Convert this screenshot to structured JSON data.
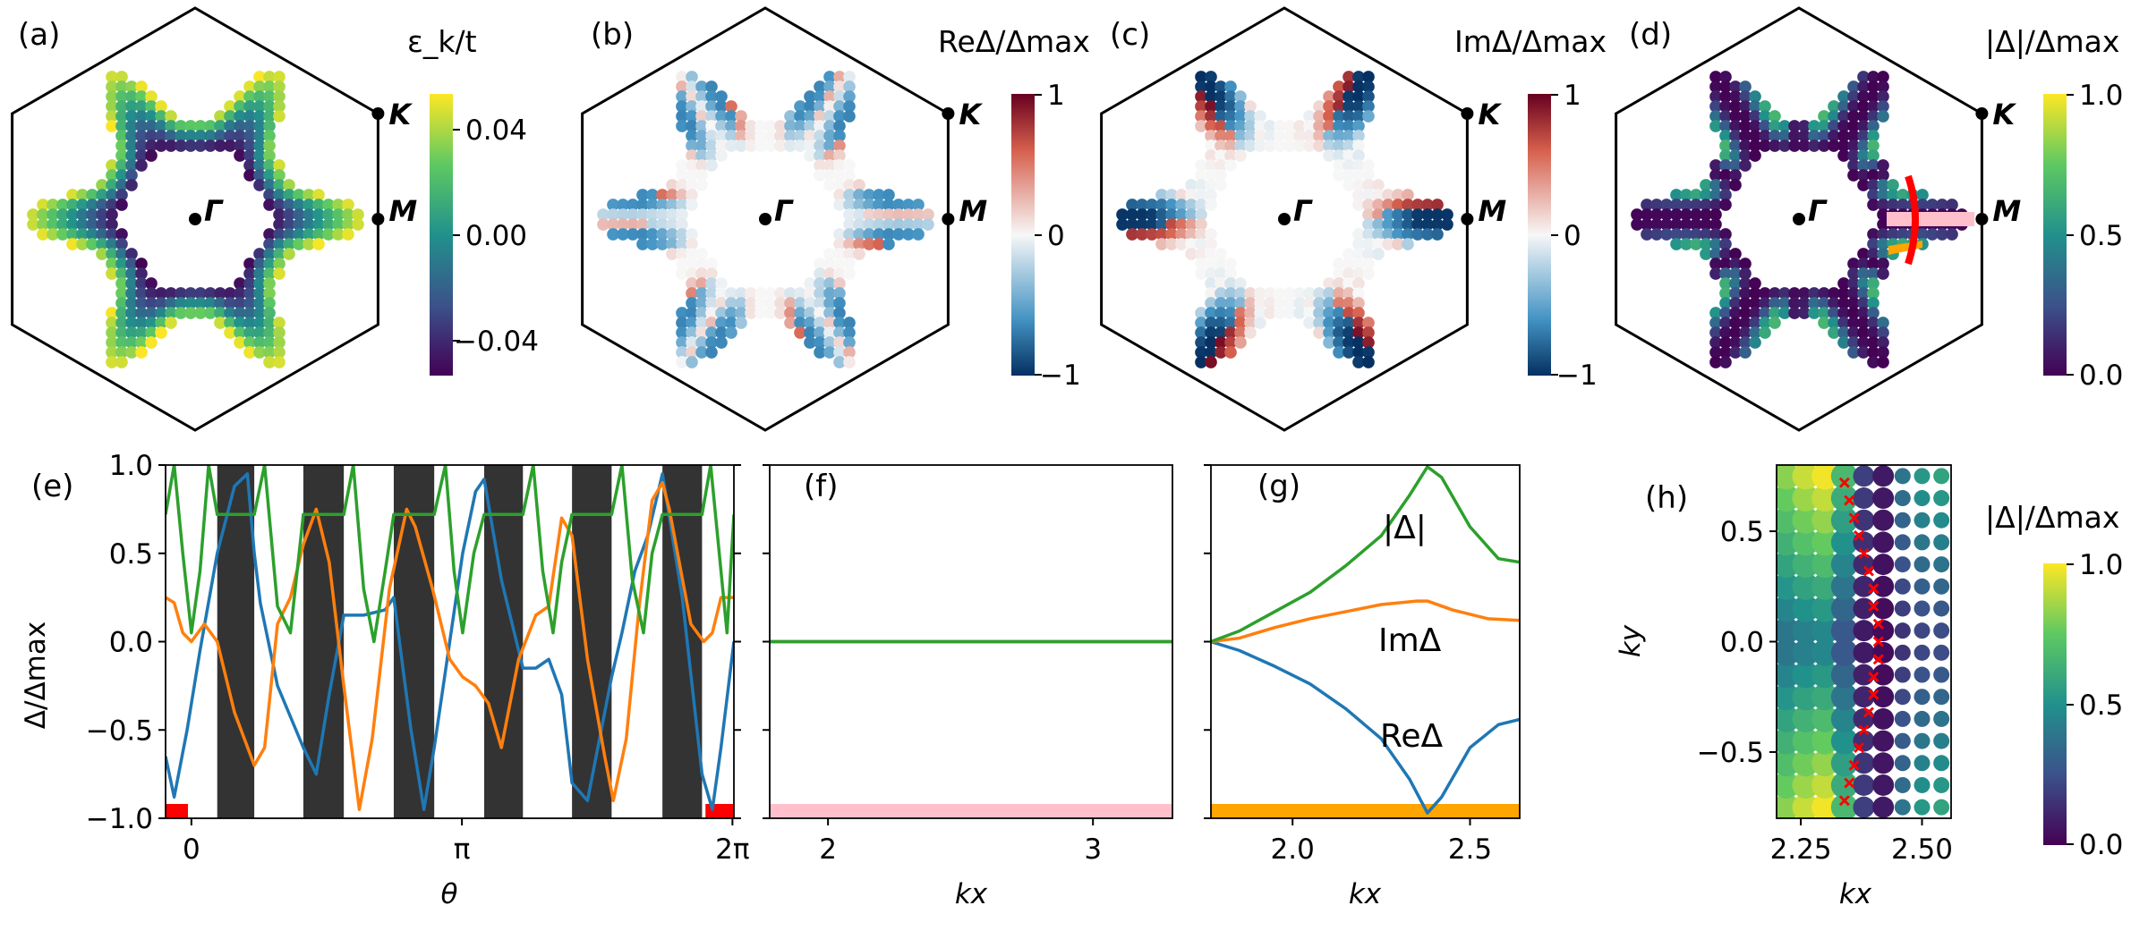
{
  "colors": {
    "re": "#1f77b4",
    "im": "#ff7f0e",
    "abs": "#2ca02c",
    "stripe": "#333333",
    "red_mark": "#ff0000",
    "pink": "#ffc0cb",
    "orange_band": "#ffa500",
    "hex_edge": "#000000"
  },
  "chart_data": [
    {
      "id": "a",
      "panel_label": "(a)",
      "type": "scatter",
      "title": "ε_k/t",
      "colormap": "viridis",
      "colorbar_ticks": [
        "0.04",
        "0.00",
        "−0.04"
      ],
      "colorbar_range": [
        -0.055,
        0.055
      ],
      "points": [
        "Γ",
        "K",
        "M"
      ]
    },
    {
      "id": "b",
      "panel_label": "(b)",
      "type": "scatter",
      "title": "ReΔ/Δmax",
      "colormap": "RdBu_r",
      "colorbar_ticks": [
        "1",
        "0",
        "−1"
      ],
      "colorbar_range": [
        -1,
        1
      ],
      "points": [
        "Γ",
        "K",
        "M"
      ]
    },
    {
      "id": "c",
      "panel_label": "(c)",
      "type": "scatter",
      "title": "ImΔ/Δmax",
      "colormap": "RdBu_r",
      "colorbar_ticks": [
        "1",
        "0",
        "−1"
      ],
      "colorbar_range": [
        -1,
        1
      ],
      "points": [
        "Γ",
        "K",
        "M"
      ]
    },
    {
      "id": "d",
      "panel_label": "(d)",
      "type": "scatter",
      "title": "|Δ|/Δmax",
      "colormap": "viridis",
      "colorbar_ticks": [
        "1.0",
        "0.5",
        "0.0"
      ],
      "colorbar_range": [
        0,
        1
      ],
      "points": [
        "Γ",
        "K",
        "M"
      ]
    },
    {
      "id": "e",
      "panel_label": "(e)",
      "type": "line",
      "xlabel": "θ",
      "ylabel": "Δ/Δmax",
      "xlim": [
        -0.3,
        6.3
      ],
      "ylim": [
        -1,
        1
      ],
      "xticks": [
        {
          "v": 0,
          "label": "0"
        },
        {
          "v": 3.14159,
          "label": "π"
        },
        {
          "v": 6.28318,
          "label": "2π"
        }
      ],
      "yticks": [
        {
          "v": 1,
          "label": "1.0"
        },
        {
          "v": 0.5,
          "label": "0.5"
        },
        {
          "v": 0,
          "label": "0.0"
        },
        {
          "v": -0.5,
          "label": "−0.5"
        },
        {
          "v": -1,
          "label": "−1.0"
        }
      ],
      "stripes": [
        [
          0.3,
          0.73
        ],
        [
          1.3,
          1.77
        ],
        [
          2.35,
          2.82
        ],
        [
          3.4,
          3.85
        ],
        [
          4.42,
          4.88
        ],
        [
          5.47,
          5.93
        ]
      ],
      "red_marks": [
        [
          -0.3,
          -0.04
        ],
        [
          5.97,
          6.3
        ]
      ],
      "series": [
        {
          "name": "ReΔ",
          "color": "re",
          "x": [
            -0.3,
            -0.2,
            -0.05,
            0.1,
            0.3,
            0.5,
            0.65,
            0.73,
            0.8,
            1.0,
            1.3,
            1.45,
            1.6,
            1.77,
            2.0,
            2.25,
            2.35,
            2.55,
            2.7,
            2.82,
            3.0,
            3.15,
            3.3,
            3.4,
            3.6,
            3.85,
            4.0,
            4.15,
            4.3,
            4.42,
            4.6,
            4.88,
            5.0,
            5.15,
            5.3,
            5.47,
            5.7,
            5.93,
            6.05,
            6.15,
            6.3
          ],
          "y": [
            -0.65,
            -0.88,
            -0.5,
            -0.05,
            0.5,
            0.88,
            0.95,
            0.5,
            0.22,
            -0.25,
            -0.6,
            -0.75,
            -0.3,
            0.15,
            0.15,
            0.18,
            0.25,
            -0.5,
            -0.95,
            -0.6,
            0.0,
            0.5,
            0.85,
            0.92,
            0.35,
            -0.15,
            -0.15,
            -0.1,
            -0.3,
            -0.8,
            -0.9,
            -0.2,
            0.05,
            0.4,
            0.6,
            0.95,
            0.25,
            -0.75,
            -0.95,
            -0.6,
            0.0
          ]
        },
        {
          "name": "ImΔ",
          "color": "im",
          "x": [
            -0.3,
            -0.2,
            -0.1,
            0.0,
            0.15,
            0.3,
            0.5,
            0.73,
            0.85,
            1.0,
            1.15,
            1.3,
            1.45,
            1.6,
            1.77,
            1.95,
            2.1,
            2.3,
            2.5,
            2.6,
            2.8,
            3.0,
            3.15,
            3.3,
            3.45,
            3.6,
            3.8,
            4.0,
            4.15,
            4.3,
            4.42,
            4.6,
            4.8,
            4.9,
            5.05,
            5.2,
            5.35,
            5.47,
            5.55,
            5.8,
            5.95,
            6.05,
            6.15,
            6.3
          ],
          "y": [
            0.25,
            0.22,
            0.05,
            0.0,
            0.1,
            0.0,
            -0.4,
            -0.7,
            -0.6,
            0.1,
            0.25,
            0.55,
            0.75,
            0.45,
            -0.25,
            -0.95,
            -0.55,
            0.3,
            0.75,
            0.65,
            0.3,
            -0.1,
            -0.2,
            -0.25,
            -0.35,
            -0.6,
            -0.1,
            0.15,
            0.2,
            0.7,
            0.6,
            -0.1,
            -0.65,
            -0.9,
            -0.55,
            0.2,
            0.8,
            0.9,
            0.75,
            0.1,
            0.0,
            0.05,
            0.25,
            0.25
          ]
        },
        {
          "name": "|Δ|",
          "color": "abs",
          "x": [
            -0.3,
            -0.2,
            -0.1,
            0.0,
            0.1,
            0.2,
            0.3,
            0.73,
            0.85,
            1.0,
            1.15,
            1.3,
            1.77,
            1.88,
            2.0,
            2.12,
            2.25,
            2.35,
            2.82,
            2.95,
            3.05,
            3.15,
            3.28,
            3.4,
            3.85,
            3.97,
            4.08,
            4.2,
            4.3,
            4.42,
            4.88,
            5.0,
            5.12,
            5.25,
            5.35,
            5.47,
            5.93,
            6.03,
            6.13,
            6.22,
            6.3
          ],
          "y": [
            0.72,
            1.0,
            0.5,
            0.05,
            0.4,
            1.0,
            0.72,
            0.72,
            1.0,
            0.2,
            0.05,
            0.72,
            0.72,
            1.0,
            0.3,
            0.0,
            0.4,
            0.72,
            0.72,
            1.0,
            0.4,
            0.05,
            0.5,
            0.72,
            0.72,
            1.0,
            0.4,
            0.05,
            0.45,
            0.72,
            0.72,
            1.0,
            0.35,
            0.05,
            0.5,
            0.72,
            0.72,
            1.0,
            0.5,
            0.05,
            0.72
          ]
        }
      ]
    },
    {
      "id": "f",
      "panel_label": "(f)",
      "type": "line",
      "xlabel": "kx",
      "ylabel": "",
      "xlim": [
        1.78,
        3.3
      ],
      "ylim": [
        -1,
        1
      ],
      "xticks": [
        {
          "v": 2,
          "label": "2"
        },
        {
          "v": 3,
          "label": "3"
        }
      ],
      "band_color": "pink",
      "series": [
        {
          "name": "ReΔ",
          "color": "re",
          "x": [
            1.78,
            3.3
          ],
          "y": [
            0,
            0
          ]
        },
        {
          "name": "ImΔ",
          "color": "im",
          "x": [
            1.78,
            3.3
          ],
          "y": [
            0,
            0
          ]
        },
        {
          "name": "|Δ|",
          "color": "abs",
          "x": [
            1.78,
            3.3
          ],
          "y": [
            0,
            0
          ]
        }
      ]
    },
    {
      "id": "g",
      "panel_label": "(g)",
      "type": "line",
      "xlabel": "kx",
      "ylabel": "",
      "xlim": [
        1.77,
        2.64
      ],
      "ylim": [
        -1,
        1
      ],
      "xticks": [
        {
          "v": 2.0,
          "label": "2.0"
        },
        {
          "v": 2.5,
          "label": "2.5"
        }
      ],
      "band_color": "orange_band",
      "annotations": [
        "|Δ|",
        "ImΔ",
        "ReΔ"
      ],
      "series": [
        {
          "name": "ReΔ",
          "color": "re",
          "x": [
            1.77,
            1.85,
            1.95,
            2.05,
            2.15,
            2.25,
            2.33,
            2.38,
            2.42,
            2.5,
            2.58,
            2.64
          ],
          "y": [
            0.0,
            -0.05,
            -0.14,
            -0.24,
            -0.38,
            -0.55,
            -0.78,
            -0.97,
            -0.88,
            -0.6,
            -0.47,
            -0.44
          ]
        },
        {
          "name": "ImΔ",
          "color": "im",
          "x": [
            1.77,
            1.85,
            1.95,
            2.05,
            2.15,
            2.25,
            2.35,
            2.38,
            2.45,
            2.55,
            2.64
          ],
          "y": [
            0.0,
            0.02,
            0.08,
            0.13,
            0.17,
            0.21,
            0.23,
            0.23,
            0.18,
            0.13,
            0.12
          ]
        },
        {
          "name": "|Δ|",
          "color": "abs",
          "x": [
            1.77,
            1.85,
            1.95,
            2.05,
            2.15,
            2.25,
            2.33,
            2.38,
            2.42,
            2.5,
            2.58,
            2.64
          ],
          "y": [
            0.0,
            0.06,
            0.17,
            0.28,
            0.43,
            0.6,
            0.83,
            0.99,
            0.93,
            0.65,
            0.47,
            0.45
          ]
        }
      ]
    },
    {
      "id": "h",
      "panel_label": "(h)",
      "type": "scatter",
      "xlabel": "kx",
      "ylabel": "ky",
      "title": "|Δ|/Δmax",
      "xlim": [
        2.2,
        2.56
      ],
      "ylim": [
        -0.8,
        0.8
      ],
      "xticks": [
        {
          "v": 2.25,
          "label": "2.25"
        },
        {
          "v": 2.5,
          "label": "2.50"
        }
      ],
      "yticks": [
        {
          "v": 0.5,
          "label": "0.5"
        },
        {
          "v": 0.0,
          "label": "0.0"
        },
        {
          "v": -0.5,
          "label": "−0.5"
        }
      ],
      "colormap": "viridis",
      "colorbar_ticks": [
        "1.0",
        "0.5",
        "0.0"
      ],
      "colorbar_range": [
        0,
        1
      ],
      "columns_kx": [
        2.22,
        2.26,
        2.3,
        2.34,
        2.38,
        2.42,
        2.46,
        2.5,
        2.54
      ],
      "rows_ky": [
        -0.75,
        -0.65,
        -0.55,
        -0.45,
        -0.35,
        -0.25,
        -0.15,
        -0.05,
        0.05,
        0.15,
        0.25,
        0.35,
        0.45,
        0.55,
        0.65,
        0.75
      ],
      "red_x": {
        "kx": [
          2.34,
          2.35,
          2.36,
          2.37,
          2.38,
          2.39,
          2.4,
          2.4,
          2.41,
          2.41,
          2.41,
          2.4,
          2.4,
          2.39,
          2.38,
          2.37,
          2.36,
          2.35,
          2.34
        ],
        "ky": [
          0.72,
          0.64,
          0.56,
          0.48,
          0.4,
          0.32,
          0.24,
          0.16,
          0.08,
          0.0,
          -0.08,
          -0.16,
          -0.24,
          -0.32,
          -0.4,
          -0.48,
          -0.56,
          -0.64,
          -0.72
        ]
      }
    }
  ]
}
